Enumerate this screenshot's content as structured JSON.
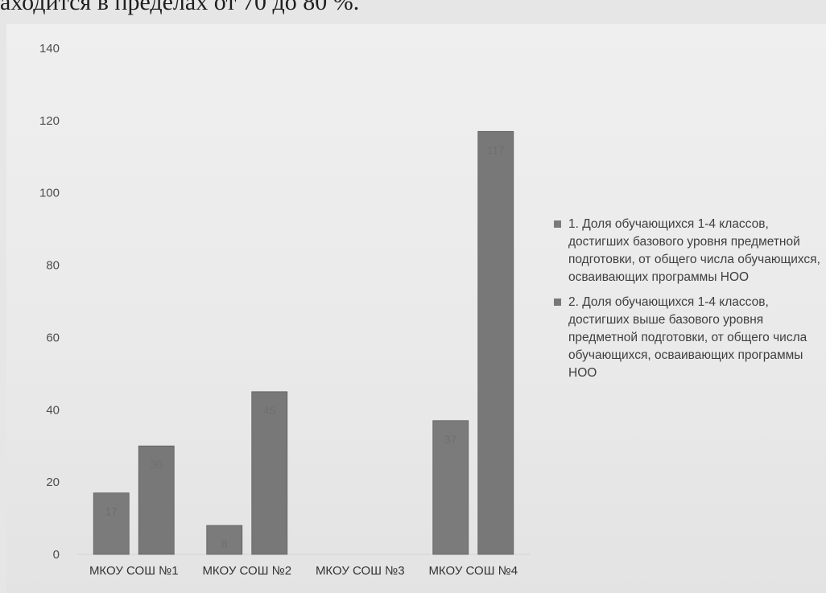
{
  "page": {
    "top_text": "аходится в пределах от 70 до 80 %."
  },
  "chart_data": {
    "type": "bar",
    "categories": [
      "МКОУ СОШ №1",
      "МКОУ СОШ №2",
      "МКОУ СОШ №3",
      "МКОУ СОШ №4"
    ],
    "series": [
      {
        "name": "1.     Доля обучающихся 1-4 классов, достигших базового уровня предметной подготовки, от общего числа обучающихся, осваивающих программы НОО",
        "values": [
          17,
          8,
          0,
          37
        ],
        "data_labels": [
          "17",
          "8",
          "",
          "37"
        ],
        "color": "#7b7b7b"
      },
      {
        "name": "2.     Доля обучающихся 1-4 классов, достигших выше базового уровня предметной подготовки, от общего числа обучающихся, осваивающих программы НОО",
        "values": [
          30,
          45,
          0,
          117
        ],
        "data_labels": [
          "30",
          "45",
          "",
          "117"
        ],
        "color": "#787878"
      }
    ],
    "title": "",
    "xlabel": "",
    "ylabel": "",
    "ylim": [
      0,
      140
    ],
    "yticks": [
      0,
      20,
      40,
      60,
      80,
      100,
      120,
      140
    ],
    "grid": false,
    "legend_position": "right"
  }
}
